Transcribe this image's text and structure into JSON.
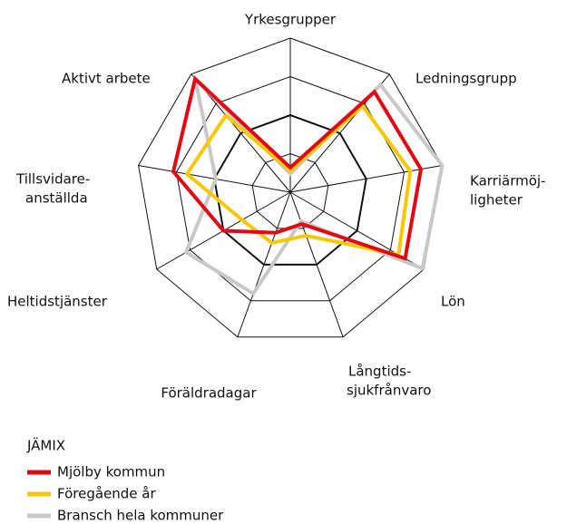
{
  "chart_data": {
    "type": "radar",
    "categories": [
      [
        "Yrkesgrupper"
      ],
      [
        "Ledningsgrupp"
      ],
      [
        "Karriärmöj-",
        "ligheter"
      ],
      [
        "Lön"
      ],
      [
        "Långtids-",
        "sjukfrånvaro"
      ],
      [
        "Föräldradagar"
      ],
      [
        "Heltidstjänster"
      ],
      [
        "Tillsvidare-",
        "anställda"
      ],
      [
        "Aktivt arbete"
      ]
    ],
    "rlim": [
      0,
      100
    ],
    "rticks": [
      25,
      50,
      75,
      100
    ],
    "highlight_ring": 50,
    "legend_title": "JÄMIX",
    "series": [
      {
        "name": "Mjölby kommun",
        "color": "#e30613",
        "values": [
          16,
          85,
          86,
          86,
          22,
          28,
          50,
          77,
          96
        ]
      },
      {
        "name": "Föregående år",
        "color": "#f5c800",
        "values": [
          14,
          73,
          79,
          81,
          30,
          35,
          36,
          68,
          65
        ]
      },
      {
        "name": "Bransch hela kommuner",
        "color": "#c8c8c8",
        "values": [
          12,
          91,
          100,
          99,
          20,
          70,
          78,
          49,
          96
        ]
      }
    ]
  }
}
